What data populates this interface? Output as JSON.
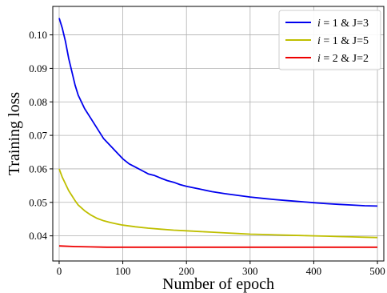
{
  "chart_data": {
    "type": "line",
    "title": "",
    "xlabel": "Number of epoch",
    "ylabel": "Training loss",
    "xlim": [
      -10,
      510
    ],
    "ylim": [
      0.0325,
      0.1085
    ],
    "xticks": [
      0,
      100,
      200,
      300,
      400,
      500
    ],
    "yticks": [
      0.04,
      0.05,
      0.06,
      0.07,
      0.08,
      0.09,
      0.1
    ],
    "xtick_labels": [
      "0",
      "100",
      "200",
      "300",
      "400",
      "500"
    ],
    "ytick_labels": [
      "0.04",
      "0.05",
      "0.06",
      "0.07",
      "0.08",
      "0.09",
      "0.10"
    ],
    "grid": true,
    "legend_position": "top-right",
    "series": [
      {
        "name_math": "i",
        "name_rest": " = 1 & J=3",
        "color": "#0000ee",
        "x": [
          0,
          5,
          10,
          15,
          20,
          25,
          30,
          40,
          50,
          60,
          70,
          80,
          90,
          100,
          110,
          120,
          130,
          140,
          150,
          160,
          170,
          180,
          190,
          200,
          220,
          240,
          260,
          280,
          300,
          320,
          340,
          360,
          380,
          400,
          420,
          440,
          460,
          480,
          500
        ],
        "y": [
          0.105,
          0.102,
          0.098,
          0.093,
          0.089,
          0.085,
          0.082,
          0.078,
          0.075,
          0.072,
          0.069,
          0.067,
          0.065,
          0.063,
          0.0615,
          0.0605,
          0.0595,
          0.0585,
          0.058,
          0.0572,
          0.0565,
          0.056,
          0.0553,
          0.0548,
          0.054,
          0.0532,
          0.0526,
          0.0521,
          0.0516,
          0.0512,
          0.0508,
          0.0505,
          0.0502,
          0.0499,
          0.0496,
          0.0494,
          0.0492,
          0.049,
          0.0489
        ]
      },
      {
        "name_math": "i",
        "name_rest": " = 1 & J=5",
        "color": "#bfbf00",
        "x": [
          0,
          5,
          10,
          15,
          20,
          25,
          30,
          40,
          50,
          60,
          70,
          80,
          90,
          100,
          120,
          140,
          160,
          180,
          200,
          220,
          240,
          260,
          280,
          300,
          320,
          340,
          360,
          380,
          400,
          420,
          440,
          460,
          480,
          500
        ],
        "y": [
          0.06,
          0.0575,
          0.0555,
          0.0535,
          0.052,
          0.0505,
          0.0492,
          0.0475,
          0.0462,
          0.0452,
          0.0445,
          0.044,
          0.0436,
          0.0432,
          0.0427,
          0.0423,
          0.042,
          0.0417,
          0.0415,
          0.0413,
          0.0411,
          0.0409,
          0.0407,
          0.0405,
          0.0404,
          0.0403,
          0.0402,
          0.0401,
          0.04,
          0.0399,
          0.0398,
          0.0397,
          0.0396,
          0.0395
        ]
      },
      {
        "name_math": "i",
        "name_rest": " = 2 & J=2",
        "color": "#ee0000",
        "x": [
          0,
          25,
          50,
          75,
          100,
          125,
          150,
          175,
          200,
          225,
          250,
          275,
          300,
          325,
          350,
          375,
          400,
          425,
          450,
          475,
          500
        ],
        "y": [
          0.037,
          0.0368,
          0.0367,
          0.0366,
          0.0366,
          0.0366,
          0.0366,
          0.0366,
          0.0366,
          0.0366,
          0.0366,
          0.0366,
          0.0366,
          0.0366,
          0.0366,
          0.0366,
          0.0366,
          0.0366,
          0.0366,
          0.0366,
          0.0366
        ]
      }
    ]
  }
}
